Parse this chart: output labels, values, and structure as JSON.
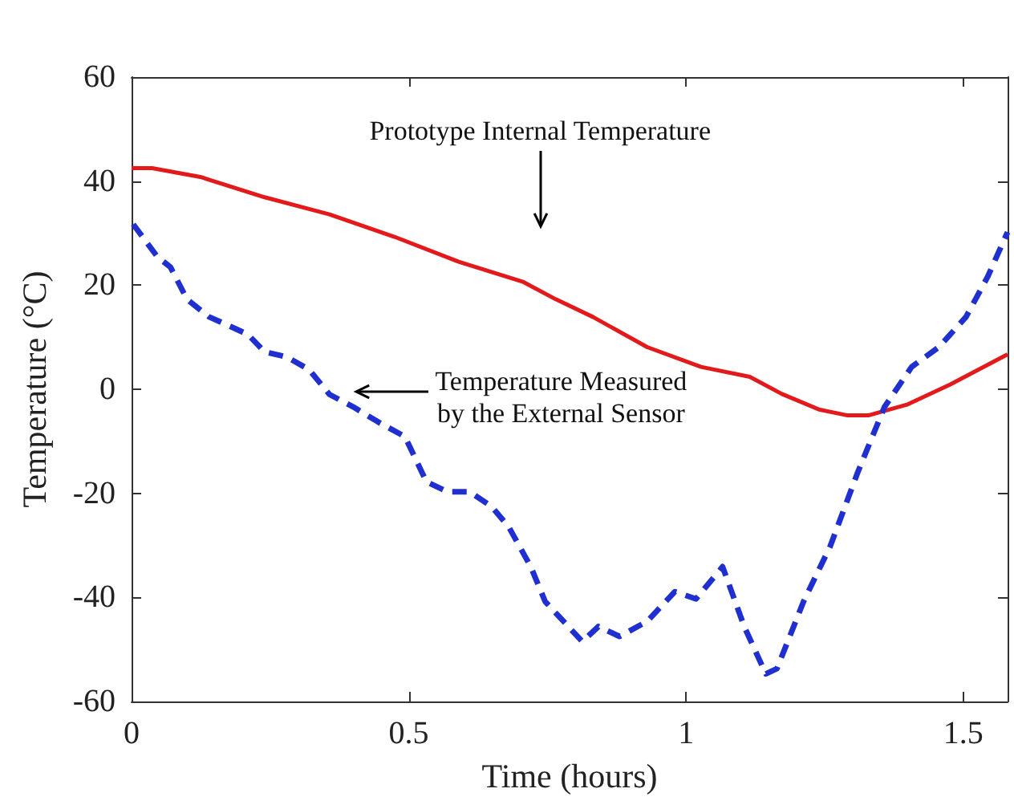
{
  "chart_data": {
    "type": "line",
    "xlabel": "Time (hours)",
    "ylabel": "Temperature (°C)",
    "xlim": [
      0,
      1.58
    ],
    "xticks": [
      0,
      0.5,
      1,
      1.5
    ],
    "ylim": [
      -60,
      60
    ],
    "yticks": [
      -60,
      -40,
      -20,
      0,
      20,
      40,
      60
    ],
    "grid": false,
    "marker": "none",
    "annotations": [
      "Prototype Internal Temperature",
      {
        "text": "Temperature Measured\nby the External Sensor",
        "x": 0.4,
        "y": -3
      }
    ],
    "series": [
      {
        "color": "#e31a1c",
        "line_style": "solid",
        "x": [
          0,
          0.037,
          0.124,
          0.24,
          0.357,
          0.474,
          0.59,
          0.707,
          0.765,
          0.832,
          0.93,
          1.027,
          1.115,
          1.173,
          1.24,
          1.29,
          1.33,
          1.4,
          1.476,
          1.58
        ],
        "values": [
          42.5,
          42.5,
          40.8,
          36.9,
          33.6,
          29.3,
          24.5,
          20.6,
          17.3,
          13.9,
          8.1,
          4.3,
          2.4,
          -0.9,
          -3.9,
          -5,
          -5,
          -2.9,
          0.9,
          6.7
        ]
      },
      {
        "color": "#1f2fd0",
        "line_style": "dashed",
        "x": [
          0.003,
          0.047,
          0.07,
          0.1,
          0.14,
          0.18,
          0.21,
          0.24,
          0.28,
          0.32,
          0.357,
          0.4,
          0.445,
          0.493,
          0.532,
          0.57,
          0.61,
          0.65,
          0.68,
          0.72,
          0.746,
          0.813,
          0.842,
          0.88,
          0.93,
          0.98,
          1.018,
          1.066,
          1.105,
          1.144,
          1.164,
          1.212,
          1.26,
          1.31,
          1.358,
          1.407,
          1.456,
          1.505,
          1.544,
          1.58
        ],
        "values": [
          31.7,
          25.4,
          23.5,
          17.3,
          13.9,
          12,
          10.5,
          7.2,
          6.2,
          3.8,
          -1,
          -3.4,
          -6.3,
          -9.1,
          -17.8,
          -19.7,
          -19.7,
          -22.6,
          -26.4,
          -34.1,
          -40.8,
          -48.5,
          -45.6,
          -47.5,
          -44.6,
          -38.9,
          -40.3,
          -34.1,
          -45.6,
          -54.7,
          -53.7,
          -40.8,
          -30.2,
          -15.9,
          -3.4,
          4.3,
          8.1,
          13.9,
          21.6,
          30.2
        ]
      }
    ]
  }
}
